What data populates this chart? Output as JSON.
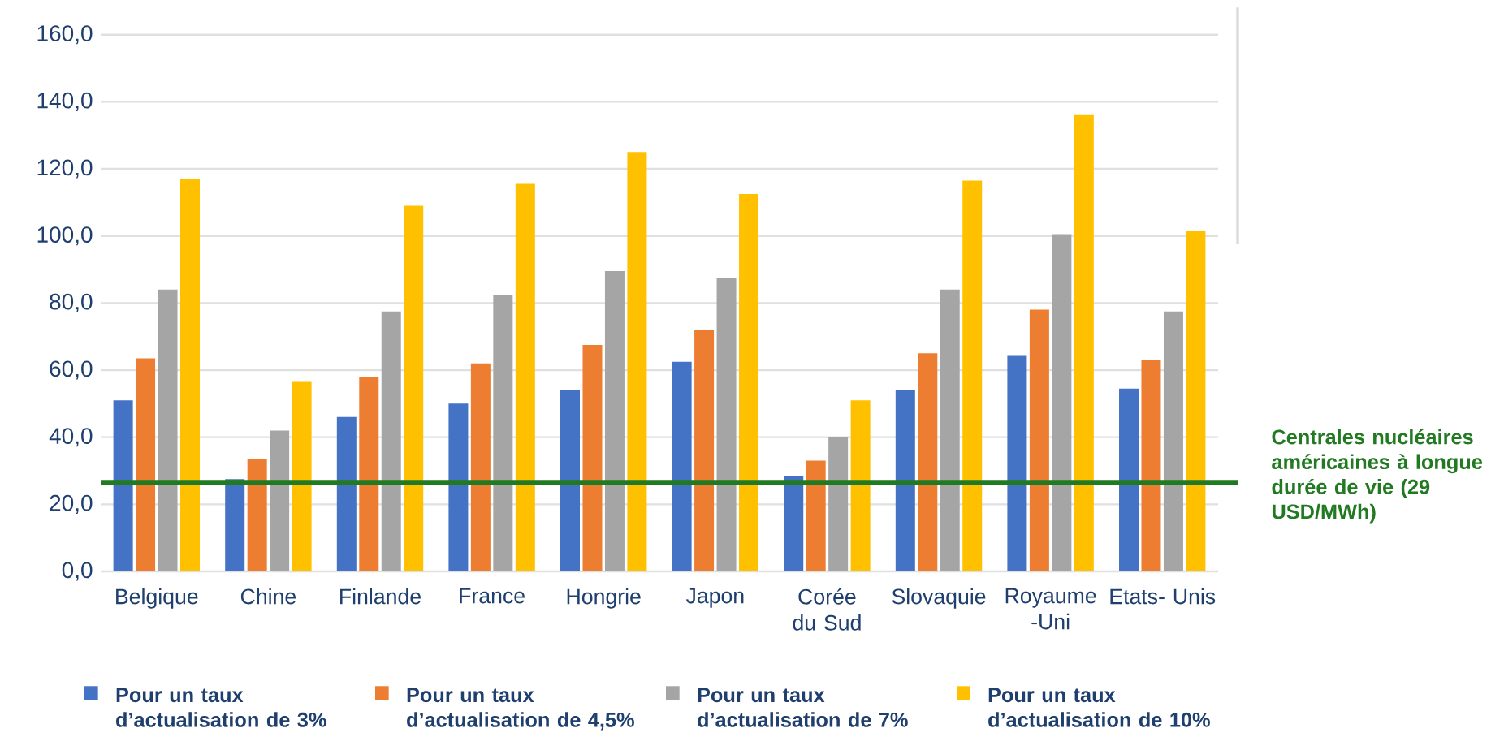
{
  "chart_data": {
    "type": "bar",
    "categories": [
      "Belgique",
      "Chine",
      "Finlande",
      "France",
      "Hongrie",
      "Japon",
      "Corée du Sud",
      "Slovaquie",
      "Royaume -Uni",
      "Etats- Unis"
    ],
    "series": [
      {
        "name": "Pour un taux d’actualisation de 3%",
        "color": "#4472c4",
        "values": [
          51,
          27.5,
          46,
          50,
          54,
          62.5,
          28.5,
          54,
          64.5,
          54.5
        ]
      },
      {
        "name": "Pour un taux d’actualisation de 4,5%",
        "color": "#ed7d31",
        "values": [
          63.5,
          33.5,
          58,
          62,
          67.5,
          72,
          33,
          65,
          78,
          63
        ]
      },
      {
        "name": "Pour un taux d’actualisation de 7%",
        "color": "#a5a5a5",
        "values": [
          84,
          42,
          77.5,
          82.5,
          89.5,
          87.5,
          40,
          84,
          100.5,
          77.5
        ]
      },
      {
        "name": "Pour un taux d’actualisation de 10%",
        "color": "#ffc000",
        "values": [
          117,
          56.5,
          109,
          115.5,
          125,
          112.5,
          51,
          116.5,
          136,
          101.5
        ]
      }
    ],
    "ylim": [
      0,
      160
    ],
    "yticks": [
      {
        "value": 0,
        "label": "0,0"
      },
      {
        "value": 20,
        "label": "20,0"
      },
      {
        "value": 40,
        "label": "40,0"
      },
      {
        "value": 60,
        "label": "60,0"
      },
      {
        "value": 80,
        "label": "80,0"
      },
      {
        "value": 100,
        "label": "100,0"
      },
      {
        "value": 120,
        "label": "120,0"
      },
      {
        "value": 140,
        "label": "140,0"
      },
      {
        "value": 160,
        "label": "160,0"
      }
    ],
    "ref_lines": [
      {
        "axis": "y",
        "value": 26.5,
        "label": "Centrales nucléaires américaines à longue durée de vie (29 USD/MWh)",
        "color": "#217a21"
      }
    ],
    "grid": "y",
    "legend": "bottom"
  }
}
